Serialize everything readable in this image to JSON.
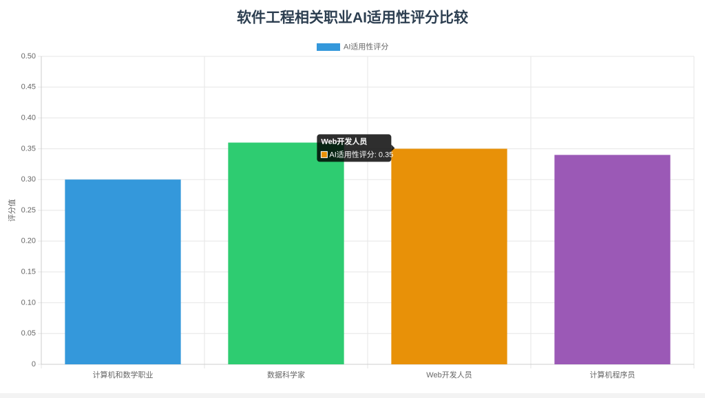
{
  "chart_data": {
    "type": "bar",
    "title": "软件工程相关职业AI适用性评分比较",
    "y_label": "评分值",
    "categories": [
      "计算机和数学职业",
      "数据科学家",
      "Web开发人员",
      "计算机程序员"
    ],
    "series": [
      {
        "name": "AI适用性评分",
        "color": "#3498db",
        "colors": [
          "#3498db",
          "#2ecc71",
          "#e89108",
          "#9b59b6"
        ],
        "values": [
          0.3,
          0.36,
          0.35,
          0.34
        ]
      }
    ],
    "ylim": [
      0,
      0.5
    ],
    "yticks": [
      0,
      0.05,
      {
        "value": 0.1,
        "label": "0.10"
      },
      0.15,
      {
        "value": 0.2,
        "label": "0.20"
      },
      0.25,
      {
        "value": 0.3,
        "label": "0.30"
      },
      0.35,
      {
        "value": 0.4,
        "label": "0.40"
      },
      0.45,
      {
        "value": 0.5,
        "label": "0.50"
      }
    ],
    "grid": true,
    "legend": "top",
    "tooltip": {
      "title": "Web开发人员",
      "label": "AI适用性评分: 0.35",
      "index": 2
    }
  }
}
